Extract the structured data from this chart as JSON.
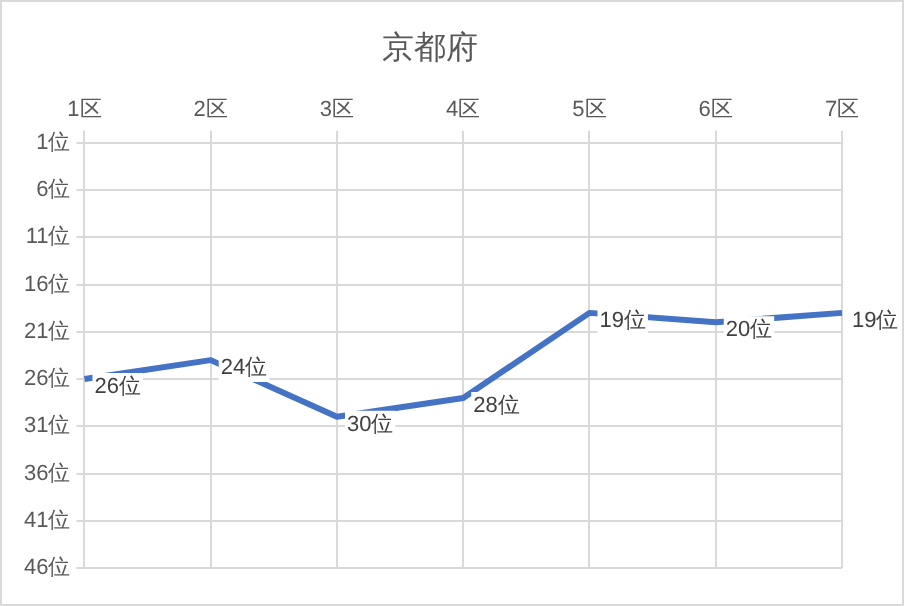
{
  "chart_data": {
    "type": "line",
    "title": "京都府",
    "categories": [
      "1区",
      "2区",
      "3区",
      "4区",
      "5区",
      "6区",
      "7区"
    ],
    "series": [
      {
        "color": "#4472c4",
        "values": [
          26,
          24,
          30,
          28,
          19,
          20,
          19
        ],
        "value_labels": [
          "26位",
          "24位",
          "30位",
          "28位",
          "19位",
          "20位",
          "19位"
        ]
      }
    ],
    "ylim": [
      46,
      1
    ],
    "yticks": [
      {
        "value": 1,
        "label": "1位"
      },
      {
        "value": 6,
        "label": "6位"
      },
      {
        "value": 11,
        "label": "11位"
      },
      {
        "value": 16,
        "label": "16位"
      },
      {
        "value": 21,
        "label": "21位"
      },
      {
        "value": 26,
        "label": "26位"
      },
      {
        "value": 31,
        "label": "31位"
      },
      {
        "value": 36,
        "label": "36位"
      },
      {
        "value": 41,
        "label": "41位"
      },
      {
        "value": 46,
        "label": "46位"
      }
    ],
    "grid": true,
    "legend": false,
    "marker": "none",
    "line_style": "solid"
  }
}
